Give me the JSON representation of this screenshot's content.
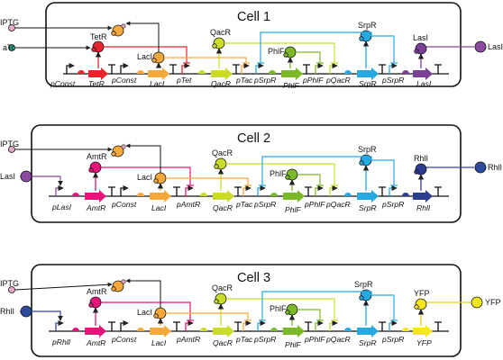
{
  "external_left": {
    "iptg": "IPTG",
    "atc": "aTc",
    "lasi": "LasI",
    "rhli": "RhlI"
  },
  "cell1": {
    "title": "Cell 1",
    "proteins": {
      "tetr": "TetR",
      "laci": "LacI",
      "qacr": "QacR",
      "phlf": "PhlF",
      "srpr": "SrpR",
      "lasi": "LasI",
      "lasi_out": "LasI"
    },
    "parts": {
      "pconst1": "pConst",
      "tetr": "TetR",
      "pconst2": "pConst",
      "laci": "LacI",
      "ptet": "pTet",
      "qacr": "QacR",
      "ptac": "pTac",
      "psrpr": "pSrpR",
      "phlf": "PhlF",
      "pphlf": "pPhlF",
      "pqacr": "pQacR",
      "srpr": "SrpR",
      "psrpr2": "pSrpR",
      "lasi": "LasI"
    }
  },
  "cell2": {
    "title": "Cell 2",
    "proteins": {
      "amtr": "AmtR",
      "laci": "LacI",
      "qacr": "QacR",
      "phlf": "PhlF",
      "srpr": "SrpR",
      "rhli": "RhlI",
      "rhli_out": "RhlI"
    },
    "parts": {
      "plasi": "pLasI",
      "amtr": "AmtR",
      "pconst": "pConst",
      "laci": "LacI",
      "pamtr": "pAmtR",
      "qacr": "QacR",
      "ptac": "pTac",
      "psrpr": "pSrpR",
      "phlf": "PhlF",
      "pphlf": "pPhlF",
      "pqacr": "pQacR",
      "srpr": "SrpR",
      "psrpr2": "pSrpR",
      "rhli": "RhlI"
    }
  },
  "cell3": {
    "title": "Cell 3",
    "proteins": {
      "amtr": "AmtR",
      "laci": "LacI",
      "qacr": "QacR",
      "phlf": "PhlF",
      "srpr": "SrpR",
      "yfp": "YFP",
      "yfp_out": "YFP"
    },
    "parts": {
      "prhli": "pRhlI",
      "amtr": "AmtR",
      "pconst": "pConst",
      "laci": "LacI",
      "pamtr": "pAmtR",
      "qacr": "QacR",
      "ptac": "pTac",
      "psrpr": "pSrpR",
      "phlf": "PhlF",
      "pphlf": "pPhlF",
      "pqacr": "pQacR",
      "srpr": "SrpR",
      "psrpr2": "pSrpR",
      "yfp": "YFP"
    }
  },
  "colors": {
    "tetr": "#e8242f",
    "amtr": "#e5137a",
    "laci": "#f6a93b",
    "qacr": "#cbdb2a",
    "phlf": "#7cb928",
    "srpr": "#27a9e1",
    "lasi": "#7b3f98",
    "rhli": "#2c3e8f",
    "yfp": "#f5e61b",
    "atc": "#1aa68c",
    "iptg": "#e9a7c9",
    "lasi_ext": "#8b4a9e",
    "rhli_ext": "#2e4a9a"
  }
}
